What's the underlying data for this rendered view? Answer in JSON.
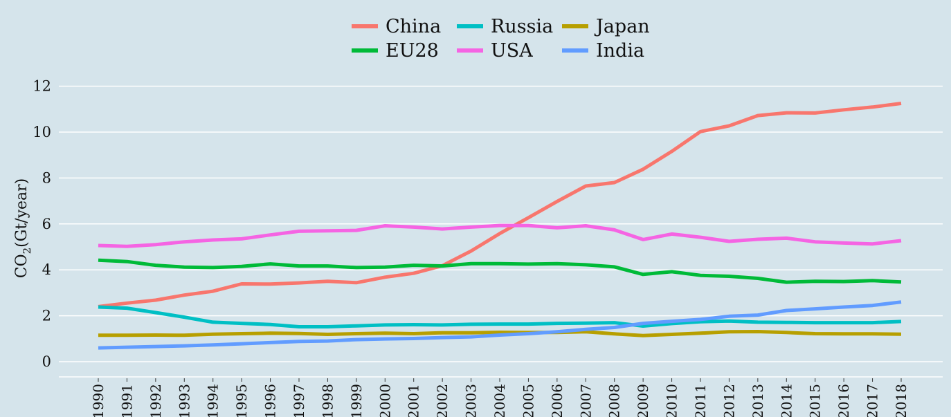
{
  "chart_data": {
    "type": "line",
    "title": "",
    "xlabel": "",
    "ylabel": "CO2 (Gt/year)",
    "ylabel_parts": {
      "main": "CO",
      "sub": "2",
      "unit": "(Gt/year)"
    },
    "ylim": [
      -0.6,
      12.6
    ],
    "yticks": [
      0,
      2,
      4,
      6,
      8,
      10,
      12
    ],
    "grid": true,
    "legend_position": "top",
    "x": [
      1990,
      1991,
      1992,
      1993,
      1994,
      1995,
      1996,
      1997,
      1998,
      1999,
      2000,
      2001,
      2002,
      2003,
      2004,
      2005,
      2006,
      2007,
      2008,
      2009,
      2010,
      2011,
      2012,
      2013,
      2014,
      2015,
      2016,
      2017,
      2018
    ],
    "series": [
      {
        "name": "China",
        "color": "#F8766D",
        "values": [
          2.4,
          2.55,
          2.68,
          2.9,
          3.07,
          3.39,
          3.38,
          3.43,
          3.5,
          3.44,
          3.68,
          3.85,
          4.18,
          4.82,
          5.58,
          6.27,
          6.98,
          7.65,
          7.8,
          8.38,
          9.16,
          10.02,
          10.27,
          10.72,
          10.84,
          10.83,
          10.97,
          11.09,
          11.25
        ]
      },
      {
        "name": "Russia",
        "color": "#00BFC4",
        "values": [
          2.38,
          2.33,
          2.14,
          1.94,
          1.72,
          1.67,
          1.62,
          1.52,
          1.52,
          1.56,
          1.6,
          1.61,
          1.6,
          1.63,
          1.64,
          1.64,
          1.67,
          1.68,
          1.7,
          1.55,
          1.66,
          1.74,
          1.77,
          1.72,
          1.71,
          1.7,
          1.7,
          1.7,
          1.75
        ]
      },
      {
        "name": "Japan",
        "color": "#B79F00",
        "values": [
          1.15,
          1.15,
          1.16,
          1.15,
          1.2,
          1.22,
          1.24,
          1.23,
          1.19,
          1.22,
          1.24,
          1.22,
          1.26,
          1.26,
          1.28,
          1.27,
          1.27,
          1.3,
          1.21,
          1.14,
          1.19,
          1.24,
          1.3,
          1.31,
          1.27,
          1.22,
          1.21,
          1.21,
          1.2
        ]
      },
      {
        "name": "EU28",
        "color": "#00BA38",
        "values": [
          4.42,
          4.36,
          4.2,
          4.12,
          4.1,
          4.15,
          4.26,
          4.17,
          4.17,
          4.1,
          4.12,
          4.2,
          4.17,
          4.27,
          4.27,
          4.25,
          4.27,
          4.22,
          4.13,
          3.8,
          3.92,
          3.76,
          3.72,
          3.63,
          3.46,
          3.5,
          3.49,
          3.53,
          3.47
        ]
      },
      {
        "name": "USA",
        "color": "#F564E3",
        "values": [
          5.06,
          5.02,
          5.1,
          5.22,
          5.3,
          5.35,
          5.52,
          5.68,
          5.7,
          5.72,
          5.92,
          5.86,
          5.78,
          5.86,
          5.93,
          5.93,
          5.83,
          5.92,
          5.74,
          5.32,
          5.56,
          5.42,
          5.24,
          5.33,
          5.38,
          5.22,
          5.17,
          5.13,
          5.27
        ]
      },
      {
        "name": "India",
        "color": "#619CFF",
        "values": [
          0.6,
          0.63,
          0.66,
          0.69,
          0.73,
          0.78,
          0.83,
          0.88,
          0.9,
          0.96,
          0.99,
          1.01,
          1.05,
          1.08,
          1.16,
          1.22,
          1.3,
          1.41,
          1.49,
          1.67,
          1.76,
          1.84,
          1.98,
          2.03,
          2.23,
          2.3,
          2.38,
          2.45,
          2.6
        ]
      }
    ]
  }
}
